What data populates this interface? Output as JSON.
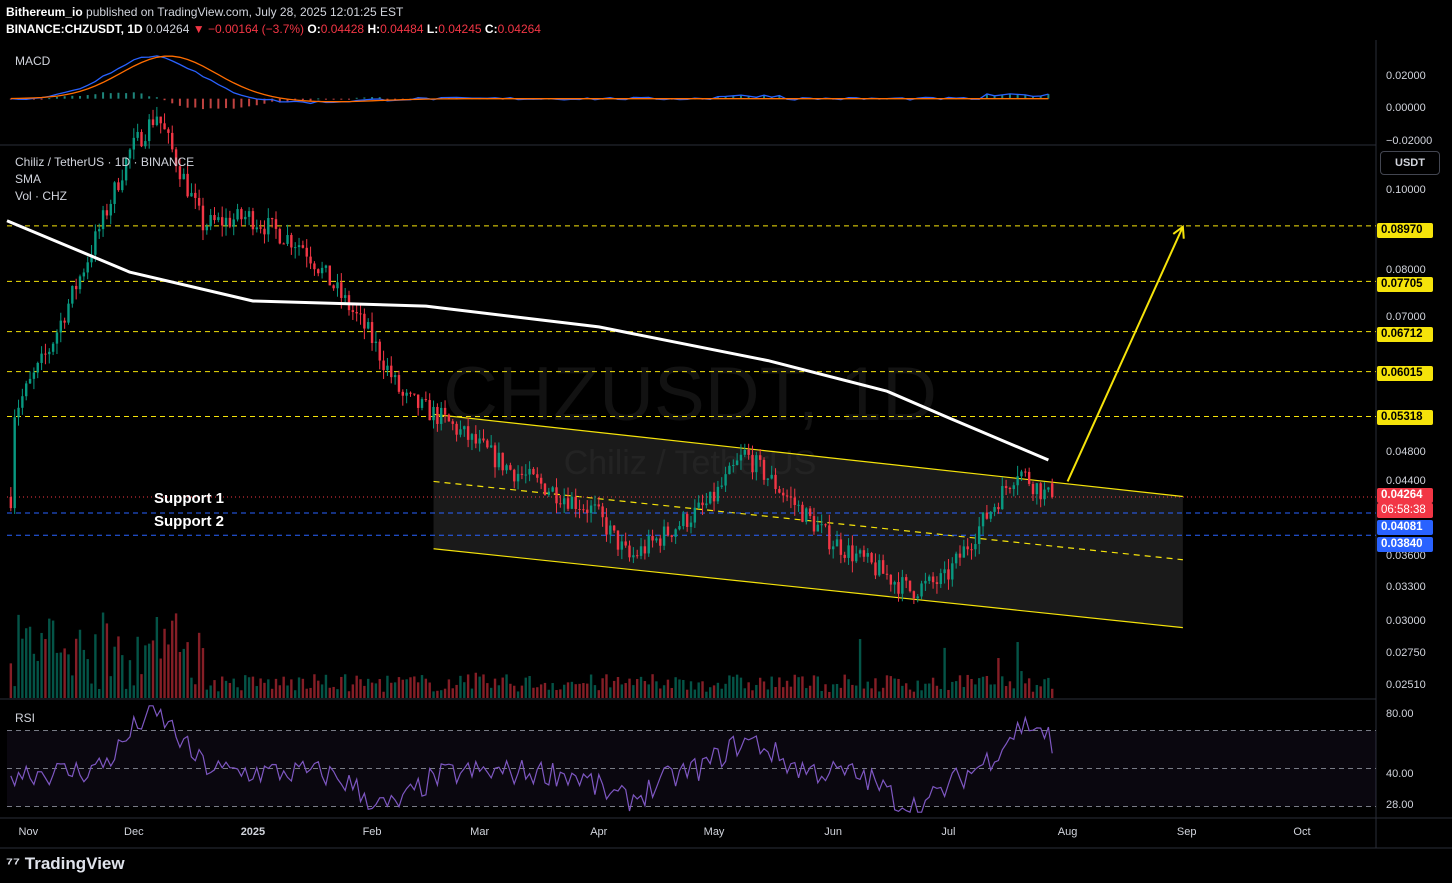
{
  "header": {
    "publisher": "Bithereum_io",
    "published_text": "published on TradingView.com, July 28, 2025 12:01:25 EST",
    "symbol_full": "BINANCE:CHZUSDT, 1D",
    "last": "0.04264",
    "change": "▼ −0.00164 (−3.7%)",
    "o_label": "O:",
    "o": "0.04428",
    "h_label": "H:",
    "h": "0.04484",
    "l_label": "L:",
    "l": "0.04245",
    "c_label": "C:",
    "c": "0.04264"
  },
  "legend": {
    "macd": "MACD",
    "pair": "Chiliz / TetherUS · 1D · BINANCE",
    "sma": "SMA",
    "vol": "Vol · CHZ",
    "rsi": "RSI"
  },
  "watermark": {
    "symbol": "CHZUSDT, 1D",
    "name": "Chiliz / TetherUS"
  },
  "unit_button": "USDT",
  "support": {
    "s1": "Support 1",
    "s2": "Support 2"
  },
  "axis": {
    "macd_ticks": [
      "0.02000",
      "0.00000",
      "−0.02000"
    ],
    "price_ticks": [
      "0.10000",
      "0.08000",
      "0.07000",
      "0.04800",
      "0.04400",
      "0.03600",
      "0.03300",
      "0.03000",
      "0.02750",
      "0.02510"
    ],
    "rsi_ticks": [
      "80.00",
      "40.00",
      "28.00"
    ],
    "time_ticks": [
      "Nov",
      "Dec",
      "2025",
      "Feb",
      "Mar",
      "Apr",
      "May",
      "Jun",
      "Jul",
      "Aug",
      "Sep",
      "Oct"
    ]
  },
  "price_tags": {
    "r1": "0.08970",
    "r2": "0.07705",
    "r3": "0.06712",
    "r4": "0.06015",
    "r5": "0.05318",
    "last": "0.04264",
    "countdown": "06:58:38",
    "s1": "0.04081",
    "s2": "0.03840"
  },
  "colors": {
    "background": "#000000",
    "bull": "#089981",
    "bear": "#f23645",
    "resistance": "#f5e30a",
    "support": "#2962ff",
    "sma": "#ffffff",
    "rsi": "#7e57c2",
    "macd_line": "#2962ff",
    "signal_line": "#ff6d00"
  },
  "brand": "TradingView",
  "chart_data": {
    "type": "candlestick",
    "price_scale": "log",
    "ylim": [
      0.0245,
      0.112
    ],
    "x_range": [
      "2024-10-29",
      "2025-10-20"
    ],
    "ohlc_anchors": [
      {
        "date": "2024-11-01",
        "close": 0.054
      },
      {
        "date": "2024-11-10",
        "close": 0.064
      },
      {
        "date": "2024-11-20",
        "close": 0.082
      },
      {
        "date": "2024-12-01",
        "close": 0.11
      },
      {
        "date": "2024-12-08",
        "close": 0.122
      },
      {
        "date": "2024-12-20",
        "close": 0.09
      },
      {
        "date": "2025-01-01",
        "close": 0.092
      },
      {
        "date": "2025-01-15",
        "close": 0.085
      },
      {
        "date": "2025-02-01",
        "close": 0.067
      },
      {
        "date": "2025-02-10",
        "close": 0.056
      },
      {
        "date": "2025-02-20",
        "close": 0.053
      },
      {
        "date": "2025-03-10",
        "close": 0.046
      },
      {
        "date": "2025-04-01",
        "close": 0.041
      },
      {
        "date": "2025-04-10",
        "close": 0.036
      },
      {
        "date": "2025-05-01",
        "close": 0.042
      },
      {
        "date": "2025-05-10",
        "close": 0.048
      },
      {
        "date": "2025-06-01",
        "close": 0.038
      },
      {
        "date": "2025-06-22",
        "close": 0.033
      },
      {
        "date": "2025-07-01",
        "close": 0.034
      },
      {
        "date": "2025-07-20",
        "close": 0.046
      },
      {
        "date": "2025-07-28",
        "close": 0.04264
      }
    ],
    "last_candle": {
      "date": "2025-07-28",
      "open": 0.04428,
      "high": 0.04484,
      "low": 0.04245,
      "close": 0.04264
    },
    "sma": {
      "points": [
        {
          "date": "2024-10-29",
          "value": 0.091
        },
        {
          "date": "2024-11-30",
          "value": 0.079
        },
        {
          "date": "2025-01-01",
          "value": 0.073
        },
        {
          "date": "2025-02-15",
          "value": 0.072
        },
        {
          "date": "2025-04-01",
          "value": 0.068
        },
        {
          "date": "2025-05-15",
          "value": 0.062
        },
        {
          "date": "2025-06-15",
          "value": 0.057
        },
        {
          "date": "2025-07-01",
          "value": 0.053
        },
        {
          "date": "2025-07-27",
          "value": 0.0472
        }
      ]
    },
    "horizontal_levels": [
      {
        "label": "0.08970",
        "value": 0.0897,
        "style": "dashed"
      },
      {
        "label": "0.07705",
        "value": 0.07705,
        "style": "dashed"
      },
      {
        "label": "0.06712",
        "value": 0.06712,
        "style": "dashed"
      },
      {
        "label": "0.06015",
        "value": 0.06015,
        "style": "dashed"
      },
      {
        "label": "0.05318",
        "value": 0.05318,
        "style": "dashed"
      },
      {
        "label": "0.04081",
        "value": 0.04081,
        "style": "dashed"
      },
      {
        "label": "0.03840",
        "value": 0.0384,
        "style": "dashed"
      }
    ],
    "descending_channel": {
      "start": "2025-02-17",
      "end": "2025-08-31",
      "upper": [
        0.0535,
        0.0427
      ],
      "middle": [
        0.0445,
        0.0359
      ],
      "lower": [
        0.037,
        0.0298
      ]
    },
    "projection_arrow": {
      "from": {
        "date": "2025-08-01",
        "value": 0.0445
      },
      "to": {
        "date": "2025-08-31",
        "value": 0.0895
      }
    },
    "volume": {
      "scale": "relative"
    },
    "rsi": {
      "levels": [
        70,
        50,
        30
      ],
      "ylim": [
        25,
        85
      ],
      "last": 58
    },
    "macd": {
      "ylim": [
        -0.02,
        0.025
      ],
      "peak": 0.0188
    }
  }
}
